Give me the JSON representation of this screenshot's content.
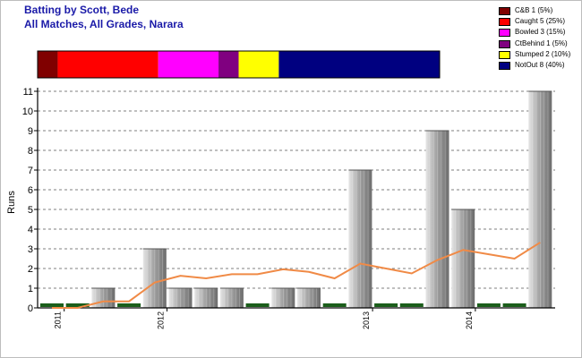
{
  "header": {
    "title": "Batting by Scott, Bede",
    "subtitle": "All Matches, All Grades, Narara"
  },
  "dismissals": [
    {
      "label": "C&B 1 (5%)",
      "count": 1,
      "color": "#800000"
    },
    {
      "label": "Caught 5 (25%)",
      "count": 5,
      "color": "#ff0000"
    },
    {
      "label": "Bowled 3 (15%)",
      "count": 3,
      "color": "#ff00ff"
    },
    {
      "label": "CtBehind 1 (5%)",
      "count": 1,
      "color": "#800080"
    },
    {
      "label": "Stumped 2 (10%)",
      "count": 2,
      "color": "#ffff00"
    },
    {
      "label": "NotOut 8 (40%)",
      "count": 8,
      "color": "#000080"
    }
  ],
  "chart_data": {
    "type": "bar",
    "ylabel": "Runs",
    "xlabel": "",
    "ylim": [
      0,
      11
    ],
    "yticks": [
      "0",
      "1",
      "2",
      "3",
      "4",
      "5",
      "6",
      "7",
      "8",
      "9",
      "10",
      "11"
    ],
    "grid": true,
    "categories": [
      "1",
      "2",
      "3",
      "4",
      "5",
      "6",
      "7",
      "8",
      "9",
      "10",
      "11",
      "12",
      "13",
      "14",
      "15",
      "16",
      "17",
      "18",
      "19",
      "20"
    ],
    "series": [
      {
        "values": [
          0,
          0,
          1,
          0,
          3,
          1,
          1,
          1,
          0,
          1,
          1,
          0,
          7,
          0,
          0,
          9,
          5,
          0,
          0,
          11
        ],
        "not_out": [
          true,
          true,
          false,
          true,
          false,
          false,
          false,
          false,
          true,
          false,
          false,
          true,
          false,
          true,
          true,
          false,
          false,
          true,
          true,
          false
        ]
      },
      {
        "type": "line",
        "color": "#f08a46",
        "values": [
          0,
          0,
          0.33,
          0.33,
          1.29,
          1.63,
          1.5,
          1.71,
          1.71,
          1.96,
          1.83,
          1.5,
          2.25,
          2.0,
          1.75,
          2.43,
          2.94,
          2.72,
          2.5,
          3.32
        ]
      }
    ],
    "x_tick_labels": [
      {
        "label": "2011",
        "after": 1
      },
      {
        "label": "2012",
        "after": 5
      },
      {
        "label": "2013",
        "after": 13
      },
      {
        "label": "2014",
        "after": 17
      }
    ]
  }
}
